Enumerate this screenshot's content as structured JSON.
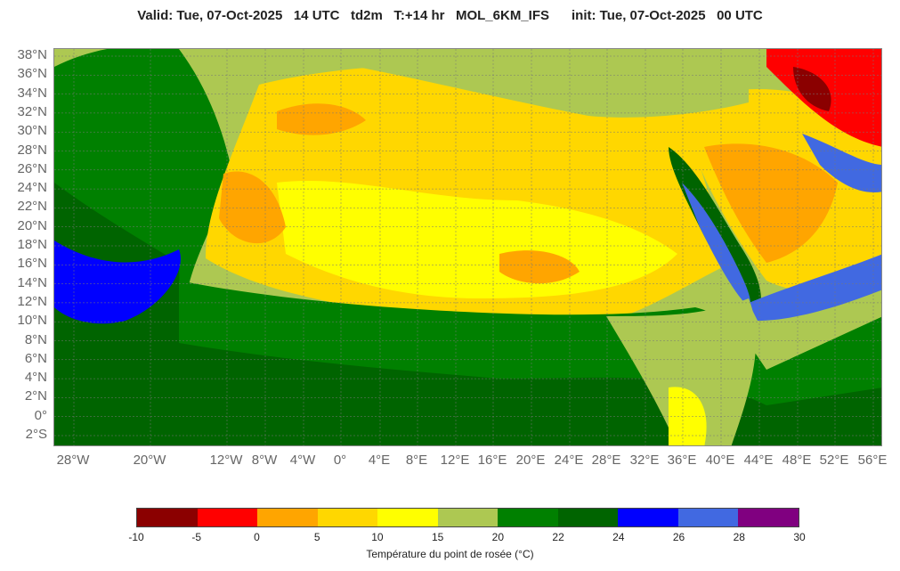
{
  "header": {
    "title": "Valid: Tue, 07-Oct-2025   14 UTC   td2m   T:+14 hr   MOL_6KM_IFS      init: Tue, 07-Oct-2025   00 UTC"
  },
  "map": {
    "variable": "td2m",
    "model": "MOL_6KM_IFS",
    "lat_labels": [
      "38°N",
      "36°N",
      "34°N",
      "32°N",
      "30°N",
      "28°N",
      "26°N",
      "24°N",
      "22°N",
      "20°N",
      "18°N",
      "16°N",
      "14°N",
      "12°N",
      "10°N",
      "8°N",
      "6°N",
      "4°N",
      "2°N",
      "0°",
      "2°S"
    ],
    "lon_labels": [
      "28°W",
      "20°W",
      "12°W",
      "8°W",
      "4°W",
      "0°",
      "4°E",
      "8°E",
      "12°E",
      "16°E",
      "20°E",
      "24°E",
      "28°E",
      "32°E",
      "36°E",
      "40°E",
      "44°E",
      "48°E",
      "52°E",
      "56°E"
    ]
  },
  "colorbar": {
    "title": "Température du point de rosée (°C)",
    "ticks": [
      "-10",
      "-5",
      "0",
      "5",
      "10",
      "15",
      "20",
      "22",
      "24",
      "26",
      "28",
      "30"
    ],
    "colors": [
      "#8b0000",
      "#ff0000",
      "#ffa500",
      "#ffd700",
      "#ffff00",
      "#adc852",
      "#008000",
      "#006400",
      "#0000ff",
      "#4169e1",
      "#800080"
    ]
  }
}
